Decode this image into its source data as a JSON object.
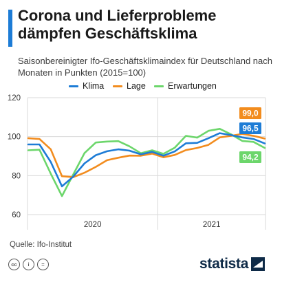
{
  "title": "Corona und Lieferprobleme dämpfen Geschäftsklima",
  "subtitle": "Saisonbereinigter Ifo-Geschäftsklimaindex für Deutschland nach Monaten in Punkten (2015=100)",
  "source": "Quelle: Ifo-Institut",
  "brand": "statista",
  "license_icons": [
    "cc-icon",
    "by-icon",
    "nd-icon"
  ],
  "colors": {
    "klima": "#1d7cd6",
    "lage": "#f28c1e",
    "erwartungen": "#6cd66b",
    "accent": "#1d7cd6",
    "brand": "#0e2a47"
  },
  "chart_data": {
    "type": "line",
    "x": [
      "2020-01",
      "2020-02",
      "2020-03",
      "2020-04",
      "2020-05",
      "2020-06",
      "2020-07",
      "2020-08",
      "2020-09",
      "2020-10",
      "2020-11",
      "2020-12",
      "2021-01",
      "2021-02",
      "2021-03",
      "2021-04",
      "2021-05",
      "2021-06",
      "2021-07",
      "2021-08",
      "2021-09",
      "2021-10"
    ],
    "x_tick_labels": [
      "2020",
      "2021"
    ],
    "y_ticks": [
      60,
      80,
      100,
      120
    ],
    "ylim": [
      60,
      120
    ],
    "grid": true,
    "legend": "top",
    "series": [
      {
        "name": "Klima",
        "color": "#1d7cd6",
        "values": [
          96.0,
          96.0,
          87.0,
          74.5,
          79.5,
          86.3,
          90.5,
          92.5,
          93.5,
          92.8,
          90.9,
          92.2,
          90.2,
          92.4,
          96.6,
          96.8,
          99.2,
          101.8,
          100.8,
          99.6,
          98.8,
          96.5
        ],
        "end_label": "96,5"
      },
      {
        "name": "Lage",
        "color": "#f28c1e",
        "values": [
          99.2,
          98.8,
          93.5,
          79.7,
          79.2,
          81.5,
          84.5,
          87.9,
          89.2,
          90.3,
          90.2,
          91.3,
          89.4,
          90.6,
          93.1,
          94.2,
          95.8,
          99.6,
          100.4,
          101.4,
          100.4,
          99.0
        ],
        "end_label": "99,0"
      },
      {
        "name": "Erwartungen",
        "color": "#6cd66b",
        "values": [
          93.0,
          93.3,
          81.0,
          69.5,
          80.6,
          91.6,
          97.0,
          97.5,
          97.7,
          95.0,
          91.5,
          93.0,
          91.2,
          94.3,
          100.4,
          99.5,
          103.0,
          104.0,
          101.2,
          97.8,
          97.3,
          94.2
        ],
        "end_label": "94,2"
      }
    ]
  }
}
